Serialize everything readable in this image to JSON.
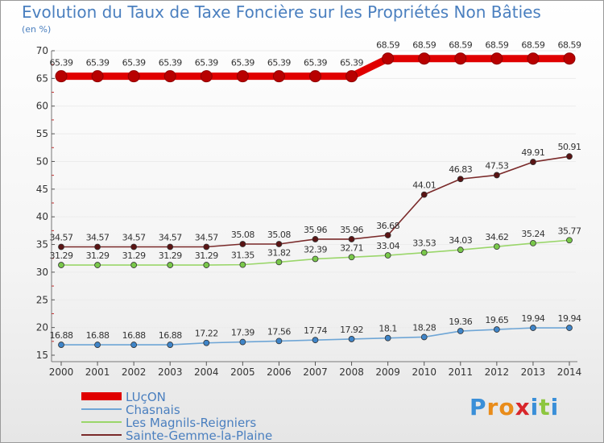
{
  "chart_data": {
    "type": "line",
    "title": "Evolution du Taux de Taxe Foncière sur les Propriétés Non Bâties",
    "ylabel": "(en %)",
    "xlabel": "",
    "ylim": [
      15,
      70
    ],
    "yticks": [
      15,
      20,
      25,
      30,
      35,
      40,
      45,
      50,
      55,
      60,
      65,
      70
    ],
    "x": [
      "2000",
      "2001",
      "2002",
      "2003",
      "2004",
      "2005",
      "2006",
      "2007",
      "2008",
      "2009",
      "2010",
      "2011",
      "2012",
      "2013",
      "2014"
    ],
    "series": [
      {
        "name": "LUçON",
        "color": "#e00000",
        "marker": "#b80000",
        "values": [
          65.39,
          65.39,
          65.39,
          65.39,
          65.39,
          65.39,
          65.39,
          65.39,
          65.39,
          68.59,
          68.59,
          68.59,
          68.59,
          68.59,
          68.59
        ],
        "labels": [
          "65.39",
          "65.39",
          "65.39",
          "65.39",
          "65.39",
          "65.39",
          "65.39",
          "65.39",
          "65.39",
          "68.59",
          "68.59",
          "68.59",
          "68.59",
          "68.59",
          "68.59"
        ]
      },
      {
        "name": "Chasnais",
        "color": "#6fa6d6",
        "marker": "#3f85c9",
        "values": [
          16.88,
          16.88,
          16.88,
          16.88,
          17.22,
          17.39,
          17.56,
          17.74,
          17.92,
          18.1,
          18.28,
          19.36,
          19.65,
          19.94,
          19.94
        ],
        "labels": [
          "16.88",
          "16.88",
          "16.88",
          "16.88",
          "17.22",
          "17.39",
          "17.56",
          "17.74",
          "17.92",
          "18.1",
          "18.28",
          "19.36",
          "19.65",
          "19.94",
          "19.94"
        ]
      },
      {
        "name": "Les Magnils-Reigniers",
        "color": "#9ad66a",
        "marker": "#79c84a",
        "values": [
          31.29,
          31.29,
          31.29,
          31.29,
          31.29,
          31.35,
          31.82,
          32.39,
          32.71,
          33.04,
          33.53,
          34.03,
          34.62,
          35.24,
          35.77
        ],
        "labels": [
          "31.29",
          "31.29",
          "31.29",
          "31.29",
          "31.29",
          "31.35",
          "31.82",
          "32.39",
          "32.71",
          "33.04",
          "33.53",
          "34.03",
          "34.62",
          "35.24",
          "35.77"
        ]
      },
      {
        "name": "Sainte-Gemme-la-Plaine",
        "color": "#7a2a2a",
        "marker": "#5a1414",
        "values": [
          34.57,
          34.57,
          34.57,
          34.57,
          34.57,
          35.08,
          35.08,
          35.96,
          35.96,
          36.68,
          44.01,
          46.83,
          47.53,
          49.91,
          50.91
        ],
        "labels": [
          "34.57",
          "34.57",
          "34.57",
          "34.57",
          "34.57",
          "35.08",
          "35.08",
          "35.96",
          "35.96",
          "36.68",
          "44.01",
          "46.83",
          "47.53",
          "49.91",
          "50.91"
        ]
      }
    ]
  },
  "logo": {
    "letters": [
      "P",
      "r",
      "o",
      "x",
      "i",
      "t",
      "i"
    ]
  }
}
